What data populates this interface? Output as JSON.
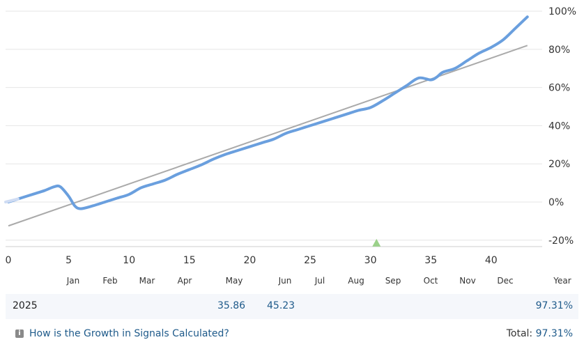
{
  "chart_data": {
    "type": "line",
    "x_ticks": [
      0,
      5,
      10,
      15,
      20,
      25,
      30,
      35,
      40
    ],
    "xlim": [
      0,
      44
    ],
    "y_ticks": [
      "100%",
      "80%",
      "60%",
      "40%",
      "20%",
      "0%",
      "-20%"
    ],
    "y_tick_values": [
      100,
      80,
      60,
      40,
      20,
      0,
      -20
    ],
    "ylim": [
      -23,
      103
    ],
    "months": [
      "Jan",
      "Feb",
      "Mar",
      "Apr",
      "May",
      "Jun",
      "Jul",
      "Aug",
      "Sep",
      "Oct",
      "Nov",
      "Dec",
      "Year"
    ],
    "grid": true,
    "y_axis_position": "right",
    "series": [
      {
        "values": [
          [
            0,
            0
          ],
          [
            1,
            2
          ],
          [
            2,
            4
          ],
          [
            3,
            6
          ],
          [
            3.8,
            8
          ],
          [
            4.3,
            8
          ],
          [
            5,
            3
          ],
          [
            5.5,
            -2
          ],
          [
            6,
            -3.5
          ],
          [
            7,
            -2
          ],
          [
            8,
            0
          ],
          [
            9,
            2
          ],
          [
            10,
            4
          ],
          [
            11,
            7.5
          ],
          [
            12,
            9.5
          ],
          [
            13,
            11.5
          ],
          [
            14,
            14.5
          ],
          [
            15,
            17
          ],
          [
            16,
            19.5
          ],
          [
            17,
            22.5
          ],
          [
            18,
            25
          ],
          [
            19,
            27
          ],
          [
            20,
            29
          ],
          [
            21,
            31
          ],
          [
            22,
            33
          ],
          [
            23,
            36
          ],
          [
            24,
            38
          ],
          [
            25,
            40
          ],
          [
            26,
            42
          ],
          [
            27,
            44
          ],
          [
            28,
            46
          ],
          [
            29,
            48
          ],
          [
            30,
            49.5
          ],
          [
            31,
            53
          ],
          [
            32,
            57
          ],
          [
            33,
            61
          ],
          [
            34,
            65
          ],
          [
            35,
            64
          ],
          [
            35.5,
            65.5
          ],
          [
            36,
            68
          ],
          [
            37,
            70
          ],
          [
            38,
            74
          ],
          [
            39,
            78
          ],
          [
            40,
            81
          ],
          [
            41,
            85
          ],
          [
            42,
            91
          ],
          [
            43,
            97
          ]
        ],
        "color": "#6a9fde"
      },
      {
        "values": [
          [
            0,
            -12.5
          ],
          [
            43,
            82
          ]
        ],
        "color": "#aaaaaa"
      }
    ],
    "marker": {
      "x": 30.5,
      "y": -21.5,
      "shape": "triangle",
      "color": "#9bd18a"
    }
  },
  "table": {
    "year": "2025",
    "may": "35.86",
    "jun": "45.23",
    "year_total": "97.31%"
  },
  "footer": {
    "help_text": "How is the Growth in Signals Calculated?",
    "help_icon": "info-icon",
    "total_label": "Total:",
    "total_value": "97.31%"
  }
}
